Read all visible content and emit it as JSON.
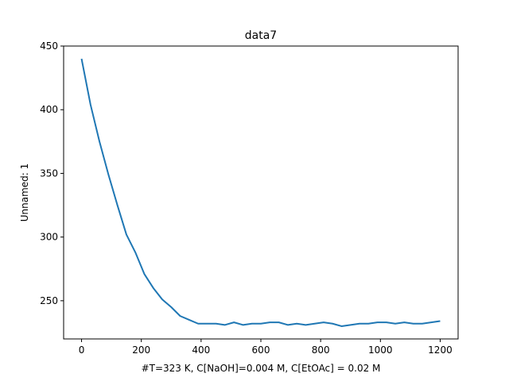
{
  "chart_data": {
    "type": "line",
    "title": "data7",
    "xlabel": "#T=323 K, C[NaOH]=0.004 M, C[EtOAc] = 0.02 M",
    "ylabel": "Unnamed: 1",
    "xlim": [
      -60,
      1260
    ],
    "ylim": [
      220,
      450
    ],
    "xticks": [
      0,
      200,
      400,
      600,
      800,
      1000,
      1200
    ],
    "yticks": [
      250,
      300,
      350,
      400,
      450
    ],
    "xtick_labels": [
      "0",
      "200",
      "400",
      "600",
      "800",
      "1000",
      "1200"
    ],
    "ytick_labels": [
      "250",
      "300",
      "350",
      "400",
      "450"
    ],
    "grid": false,
    "series": [
      {
        "color": "#1f77b4",
        "x": [
          0,
          30,
          60,
          90,
          120,
          150,
          180,
          210,
          240,
          270,
          300,
          330,
          360,
          390,
          420,
          450,
          480,
          510,
          540,
          570,
          600,
          630,
          660,
          690,
          720,
          750,
          780,
          810,
          840,
          870,
          900,
          930,
          960,
          990,
          1020,
          1050,
          1080,
          1110,
          1140,
          1170,
          1200
        ],
        "y": [
          440,
          404,
          375,
          349,
          325,
          302,
          288,
          271,
          260,
          251,
          245,
          238,
          235,
          232,
          232,
          232,
          231,
          233,
          231,
          232,
          232,
          233,
          233,
          231,
          232,
          231,
          232,
          233,
          232,
          230,
          231,
          232,
          232,
          233,
          233,
          232,
          233,
          232,
          232,
          233,
          234
        ]
      }
    ]
  }
}
